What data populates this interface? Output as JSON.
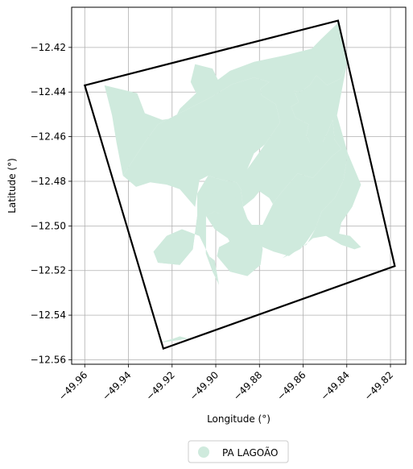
{
  "chart_data": {
    "type": "map",
    "xlabel": "Longitude (°)",
    "ylabel": "Latitude (°)",
    "xlim": [
      -49.966,
      -49.813
    ],
    "ylim": [
      -12.562,
      -12.402
    ],
    "x_ticks": [
      -49.96,
      -49.94,
      -49.92,
      -49.9,
      -49.88,
      -49.86,
      -49.84,
      -49.82
    ],
    "x_tick_labels": [
      "−49.96",
      "−49.94",
      "−49.92",
      "−49.90",
      "−49.88",
      "−49.86",
      "−49.84",
      "−49.82"
    ],
    "y_ticks": [
      -12.42,
      -12.44,
      -12.46,
      -12.48,
      -12.5,
      -12.52,
      -12.54,
      -12.56
    ],
    "y_tick_labels": [
      "−12.42",
      "−12.44",
      "−12.46",
      "−12.48",
      "−12.50",
      "−12.52",
      "−12.54",
      "−12.56"
    ],
    "x_tick_rotation_deg": 45,
    "grid": true,
    "legend": {
      "position": "bottom-center",
      "entries": [
        {
          "label": "PA LAGOÃO",
          "color": "#cfeadd"
        }
      ]
    },
    "boundary": {
      "color": "#000000",
      "coords": [
        [
          -49.96,
          -12.437
        ],
        [
          -49.844,
          -12.408
        ],
        [
          -49.818,
          -12.518
        ],
        [
          -49.924,
          -12.555
        ]
      ]
    },
    "area_fill_color": "#cfeadd",
    "area_polygons": [
      [
        [
          -49.951,
          -12.437
        ],
        [
          -49.936,
          -12.4405
        ],
        [
          -49.9325,
          -12.4495
        ],
        [
          -49.9245,
          -12.4525
        ],
        [
          -49.9185,
          -12.4515
        ],
        [
          -49.9165,
          -12.4475
        ],
        [
          -49.909,
          -12.4405
        ],
        [
          -49.9115,
          -12.4355
        ],
        [
          -49.9095,
          -12.4275
        ],
        [
          -49.9015,
          -12.4295
        ],
        [
          -49.899,
          -12.4345
        ],
        [
          -49.8935,
          -12.4305
        ],
        [
          -49.8825,
          -12.4265
        ],
        [
          -49.868,
          -12.4235
        ],
        [
          -49.856,
          -12.4205
        ],
        [
          -49.852,
          -12.4165
        ],
        [
          -49.844,
          -12.409
        ],
        [
          -49.84,
          -12.4275
        ],
        [
          -49.843,
          -12.434
        ],
        [
          -49.849,
          -12.437
        ],
        [
          -49.854,
          -12.4325
        ],
        [
          -49.857,
          -12.437
        ],
        [
          -49.8615,
          -12.44
        ],
        [
          -49.864,
          -12.4395
        ],
        [
          -49.862,
          -12.4445
        ],
        [
          -49.8655,
          -12.4465
        ],
        [
          -49.8635,
          -12.4515
        ],
        [
          -49.8575,
          -12.4545
        ],
        [
          -49.8585,
          -12.4595
        ],
        [
          -49.857,
          -12.4625
        ],
        [
          -49.851,
          -12.4625
        ],
        [
          -49.8485,
          -12.4575
        ],
        [
          -49.8465,
          -12.4525
        ],
        [
          -49.8455,
          -12.4615
        ],
        [
          -49.8425,
          -12.4655
        ],
        [
          -49.8465,
          -12.4685
        ],
        [
          -49.8555,
          -12.4785
        ],
        [
          -49.8625,
          -12.4765
        ],
        [
          -49.8695,
          -12.4845
        ],
        [
          -49.8735,
          -12.4895
        ],
        [
          -49.8785,
          -12.4995
        ],
        [
          -49.8765,
          -12.5095
        ],
        [
          -49.871,
          -12.5115
        ],
        [
          -49.8665,
          -12.5065
        ],
        [
          -49.8695,
          -12.5005
        ],
        [
          -49.8725,
          -12.4925
        ],
        [
          -49.8755,
          -12.4875
        ],
        [
          -49.88,
          -12.4845
        ],
        [
          -49.8825,
          -12.4875
        ],
        [
          -49.8875,
          -12.4915
        ],
        [
          -49.8885,
          -12.4835
        ],
        [
          -49.8855,
          -12.4745
        ],
        [
          -49.8775,
          -12.4635
        ],
        [
          -49.8705,
          -12.4535
        ],
        [
          -49.8725,
          -12.4455
        ],
        [
          -49.879,
          -12.4415
        ],
        [
          -49.8795,
          -12.4385
        ],
        [
          -49.8755,
          -12.4355
        ],
        [
          -49.8825,
          -12.4335
        ],
        [
          -49.8925,
          -12.4365
        ],
        [
          -49.9025,
          -12.4425
        ],
        [
          -49.9185,
          -12.4505
        ],
        [
          -49.9265,
          -12.4545
        ],
        [
          -49.9325,
          -12.4625
        ],
        [
          -49.9385,
          -12.4715
        ],
        [
          -49.9425,
          -12.4775
        ],
        [
          -49.9455,
          -12.4625
        ],
        [
          -49.9475,
          -12.4505
        ]
      ],
      [
        [
          -49.9425,
          -12.4775
        ],
        [
          -49.9385,
          -12.4715
        ],
        [
          -49.9325,
          -12.4625
        ],
        [
          -49.9265,
          -12.4545
        ],
        [
          -49.9185,
          -12.4505
        ],
        [
          -49.9025,
          -12.4425
        ],
        [
          -49.8925,
          -12.4365
        ],
        [
          -49.8825,
          -12.4335
        ],
        [
          -49.8755,
          -12.4355
        ],
        [
          -49.8795,
          -12.4385
        ],
        [
          -49.879,
          -12.4415
        ],
        [
          -49.8725,
          -12.4455
        ],
        [
          -49.8705,
          -12.4535
        ],
        [
          -49.8775,
          -12.4635
        ],
        [
          -49.8825,
          -12.4675
        ],
        [
          -49.8855,
          -12.4745
        ],
        [
          -49.8865,
          -12.4815
        ],
        [
          -49.8885,
          -12.4835
        ],
        [
          -49.8905,
          -12.4805
        ],
        [
          -49.8965,
          -12.4795
        ],
        [
          -49.9035,
          -12.4775
        ],
        [
          -49.9075,
          -12.4795
        ],
        [
          -49.9085,
          -12.4855
        ],
        [
          -49.9095,
          -12.4915
        ],
        [
          -49.9165,
          -12.4835
        ],
        [
          -49.9225,
          -12.4815
        ],
        [
          -49.93,
          -12.4805
        ],
        [
          -49.9365,
          -12.4825
        ]
      ],
      [
        [
          -49.9085,
          -12.4855
        ],
        [
          -49.9035,
          -12.4775
        ],
        [
          -49.8965,
          -12.4795
        ],
        [
          -49.8905,
          -12.4805
        ],
        [
          -49.8885,
          -12.4835
        ],
        [
          -49.8875,
          -12.4915
        ],
        [
          -49.8845,
          -12.4995
        ],
        [
          -49.8785,
          -12.4995
        ],
        [
          -49.8735,
          -12.4895
        ],
        [
          -49.8695,
          -12.4845
        ],
        [
          -49.8625,
          -12.4765
        ],
        [
          -49.8555,
          -12.4785
        ],
        [
          -49.8465,
          -12.4685
        ],
        [
          -49.8425,
          -12.4655
        ],
        [
          -49.8455,
          -12.4615
        ],
        [
          -49.8465,
          -12.4525
        ],
        [
          -49.8485,
          -12.4575
        ],
        [
          -49.851,
          -12.4625
        ],
        [
          -49.857,
          -12.4625
        ],
        [
          -49.8585,
          -12.4595
        ],
        [
          -49.8575,
          -12.4545
        ],
        [
          -49.8635,
          -12.4515
        ],
        [
          -49.8655,
          -12.4465
        ],
        [
          -49.862,
          -12.4445
        ],
        [
          -49.864,
          -12.4395
        ],
        [
          -49.8615,
          -12.44
        ],
        [
          -49.857,
          -12.437
        ],
        [
          -49.854,
          -12.4325
        ],
        [
          -49.849,
          -12.437
        ],
        [
          -49.843,
          -12.434
        ],
        [
          -49.84,
          -12.4275
        ],
        [
          -49.8445,
          -12.4505
        ],
        [
          -49.8395,
          -12.4675
        ],
        [
          -49.8415,
          -12.4795
        ],
        [
          -49.8455,
          -12.4875
        ],
        [
          -49.8515,
          -12.4935
        ],
        [
          -49.8545,
          -12.5015
        ],
        [
          -49.8595,
          -12.5085
        ],
        [
          -49.8665,
          -12.5135
        ],
        [
          -49.8735,
          -12.5115
        ],
        [
          -49.8785,
          -12.5095
        ],
        [
          -49.8865,
          -12.5025
        ],
        [
          -49.8945,
          -12.4965
        ],
        [
          -49.9005,
          -12.4935
        ],
        [
          -49.9045,
          -12.4955
        ],
        [
          -49.9045,
          -12.5035
        ],
        [
          -49.9045,
          -12.5125
        ],
        [
          -49.9015,
          -12.5205
        ],
        [
          -49.8985,
          -12.5265
        ],
        [
          -49.9025,
          -12.5145
        ],
        [
          -49.9075,
          -12.5045
        ],
        [
          -49.9155,
          -12.5015
        ],
        [
          -49.9225,
          -12.5045
        ],
        [
          -49.9285,
          -12.5115
        ],
        [
          -49.9265,
          -12.5165
        ],
        [
          -49.9165,
          -12.5175
        ],
        [
          -49.9105,
          -12.5105
        ],
        [
          -49.9085,
          -12.4955
        ]
      ],
      [
        [
          -49.9285,
          -12.5115
        ],
        [
          -49.9225,
          -12.5045
        ],
        [
          -49.9155,
          -12.5015
        ],
        [
          -49.9075,
          -12.5045
        ],
        [
          -49.9025,
          -12.5145
        ],
        [
          -49.8985,
          -12.5265
        ],
        [
          -49.9005,
          -12.5155
        ],
        [
          -49.9045,
          -12.5125
        ],
        [
          -49.9045,
          -12.5035
        ],
        [
          -49.9045,
          -12.4955
        ],
        [
          -49.9005,
          -12.4935
        ],
        [
          -49.8985,
          -12.4945
        ],
        [
          -49.8965,
          -12.4895
        ],
        [
          -49.8985,
          -12.4845
        ],
        [
          -49.9045,
          -12.4865
        ],
        [
          -49.9085,
          -12.4955
        ],
        [
          -49.9105,
          -12.5105
        ],
        [
          -49.9165,
          -12.5175
        ],
        [
          -49.9265,
          -12.5165
        ]
      ],
      [
        [
          -49.8885,
          -12.5095
        ],
        [
          -49.8835,
          -12.5065
        ],
        [
          -49.8795,
          -12.4995
        ],
        [
          -49.8835,
          -12.4995
        ],
        [
          -49.8865,
          -12.4955
        ],
        [
          -49.8885,
          -12.4915
        ],
        [
          -49.8905,
          -12.4875
        ],
        [
          -49.8985,
          -12.4845
        ],
        [
          -49.8965,
          -12.4895
        ],
        [
          -49.8985,
          -12.4945
        ],
        [
          -49.9005,
          -12.4935
        ],
        [
          -49.9045,
          -12.4955
        ],
        [
          -49.9005,
          -12.5015
        ],
        [
          -49.8945,
          -12.5055
        ],
        [
          -49.8905,
          -12.5125
        ]
      ],
      [
        [
          -49.9265,
          -12.5525
        ],
        [
          -49.9195,
          -12.5505
        ],
        [
          -49.9165,
          -12.5495
        ],
        [
          -49.9125,
          -12.5505
        ]
      ],
      [
        [
          -49.8995,
          -12.5135
        ],
        [
          -49.8935,
          -12.5205
        ],
        [
          -49.8855,
          -12.5225
        ],
        [
          -49.8795,
          -12.5175
        ],
        [
          -49.8785,
          -12.5105
        ],
        [
          -49.8795,
          -12.5045
        ],
        [
          -49.8825,
          -12.5035
        ],
        [
          -49.8875,
          -12.5005
        ],
        [
          -49.8905,
          -12.5045
        ],
        [
          -49.8945,
          -12.5075
        ],
        [
          -49.8985,
          -12.5095
        ]
      ],
      [
        [
          -49.8695,
          -12.5145
        ],
        [
          -49.8655,
          -12.5115
        ],
        [
          -49.8585,
          -12.5085
        ],
        [
          -49.8545,
          -12.5015
        ],
        [
          -49.8515,
          -12.4935
        ],
        [
          -49.8455,
          -12.4875
        ],
        [
          -49.8415,
          -12.4795
        ],
        [
          -49.8395,
          -12.4675
        ],
        [
          -49.8365,
          -12.4745
        ],
        [
          -49.8335,
          -12.4815
        ],
        [
          -49.8375,
          -12.4915
        ],
        [
          -49.8425,
          -12.4985
        ],
        [
          -49.8435,
          -12.5035
        ],
        [
          -49.8385,
          -12.5045
        ],
        [
          -49.8335,
          -12.5095
        ],
        [
          -49.8365,
          -12.5105
        ],
        [
          -49.8425,
          -12.5085
        ],
        [
          -49.8495,
          -12.5045
        ],
        [
          -49.8555,
          -12.5055
        ],
        [
          -49.8615,
          -12.5105
        ]
      ]
    ]
  }
}
